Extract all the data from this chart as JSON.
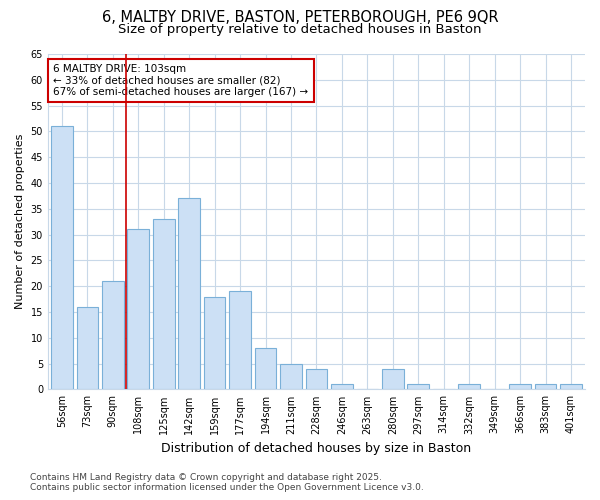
{
  "title_line1": "6, MALTBY DRIVE, BASTON, PETERBOROUGH, PE6 9QR",
  "title_line2": "Size of property relative to detached houses in Baston",
  "categories": [
    "56sqm",
    "73sqm",
    "90sqm",
    "108sqm",
    "125sqm",
    "142sqm",
    "159sqm",
    "177sqm",
    "194sqm",
    "211sqm",
    "228sqm",
    "246sqm",
    "263sqm",
    "280sqm",
    "297sqm",
    "314sqm",
    "332sqm",
    "349sqm",
    "366sqm",
    "383sqm",
    "401sqm"
  ],
  "values": [
    51,
    16,
    21,
    31,
    33,
    37,
    18,
    19,
    8,
    5,
    4,
    1,
    0,
    4,
    1,
    0,
    1,
    0,
    1,
    1,
    1
  ],
  "bar_color": "#cce0f5",
  "bar_edge_color": "#7ab0d8",
  "vline_x": 2.5,
  "vline_color": "#cc0000",
  "ylabel": "Number of detached properties",
  "xlabel": "Distribution of detached houses by size in Baston",
  "annotation_title": "6 MALTBY DRIVE: 103sqm",
  "annotation_line2": "← 33% of detached houses are smaller (82)",
  "annotation_line3": "67% of semi-detached houses are larger (167) →",
  "annotation_box_color": "#cc0000",
  "annotation_bg": "#ffffff",
  "ylim": [
    0,
    65
  ],
  "yticks": [
    0,
    5,
    10,
    15,
    20,
    25,
    30,
    35,
    40,
    45,
    50,
    55,
    60,
    65
  ],
  "footer_line1": "Contains HM Land Registry data © Crown copyright and database right 2025.",
  "footer_line2": "Contains public sector information licensed under the Open Government Licence v3.0.",
  "bg_color": "#ffffff",
  "plot_bg_color": "#ffffff",
  "grid_color": "#c8d8e8",
  "title_fontsize": 10.5,
  "subtitle_fontsize": 9.5,
  "ylabel_fontsize": 8,
  "xlabel_fontsize": 9,
  "tick_fontsize": 7,
  "footer_fontsize": 6.5,
  "ann_fontsize": 7.5
}
